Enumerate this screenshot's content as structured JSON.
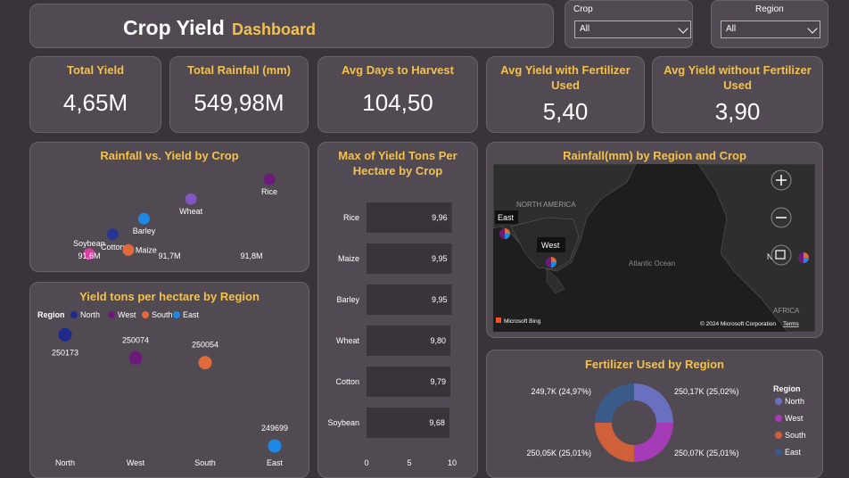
{
  "header": {
    "title_main": "Crop Yield",
    "title_sub": "Dashboard"
  },
  "slicers": [
    {
      "label": "Crop",
      "value": "All"
    },
    {
      "label": "Region",
      "value": "All"
    }
  ],
  "kpis": [
    {
      "label": "Total Yield",
      "value": "4,65M"
    },
    {
      "label": "Total Rainfall (mm)",
      "value": "549,98M"
    },
    {
      "label": "Avg Days to Harvest",
      "value": "104,50"
    },
    {
      "label": "Avg Yield with Fertilizer Used",
      "value": "5,40"
    },
    {
      "label": "Avg Yield without Fertilizer Used",
      "value": "3,90"
    }
  ],
  "scatter_crop": {
    "title": "Rainfall vs. Yield by Crop",
    "x_ticks": [
      "91,6M",
      "91,7M",
      "91,8M"
    ]
  },
  "region_scatter": {
    "title": "Yield tons per hectare by Region",
    "legend_title": "Region"
  },
  "bar_crop": {
    "title": "Max of Yield Tons Per Hectare by Crop"
  },
  "map": {
    "title": "Rainfall(mm) by Region and Crop",
    "labels": {
      "east": "East",
      "west": "West",
      "na": "NORTH AMERICA",
      "ocean": "Atlantic Ocean",
      "north_trunc": "N",
      "africa": "AFRICA"
    },
    "bing": "Microsoft Bing",
    "copyright": "© 2024 Microsoft Corporation",
    "terms": "Terms"
  },
  "donut": {
    "title": "Fertilizer Used by Region",
    "legend_title": "Region"
  },
  "colors": {
    "north": "#1f2a8c",
    "west": "#6a1b7a",
    "south": "#e06a3a",
    "east": "#1e88e5",
    "rice": "#6a1b7a",
    "wheat": "#7e57c2",
    "barley": "#1e88e5",
    "cotton": "#283593",
    "maize": "#e06a3a",
    "soybean": "#d63fa0",
    "donut_north": "#6a6fc0",
    "donut_west": "#a63bb8",
    "donut_south": "#d0603a",
    "donut_east": "#3a5a8a",
    "bar": "#3a3339"
  },
  "chart_data": [
    {
      "type": "scatter",
      "title": "Rainfall vs. Yield by Crop",
      "x_ticks": [
        "91,6M",
        "91,7M",
        "91,8M"
      ],
      "series": [
        {
          "name": "Rice",
          "x": 91.81,
          "y": 4.65
        },
        {
          "name": "Wheat",
          "x": 91.71,
          "y": 4.6
        },
        {
          "name": "Barley",
          "x": 91.65,
          "y": 4.55
        },
        {
          "name": "Cotton",
          "x": 91.61,
          "y": 4.51
        },
        {
          "name": "Maize",
          "x": 91.63,
          "y": 4.47
        },
        {
          "name": "Soybean",
          "x": 91.58,
          "y": 4.46
        }
      ]
    },
    {
      "type": "scatter",
      "title": "Yield tons per hectare by Region",
      "categories": [
        "North",
        "West",
        "South",
        "East"
      ],
      "legend": [
        "North",
        "West",
        "South",
        "East"
      ],
      "series": [
        {
          "name": "North",
          "value": 250173,
          "label": "250173"
        },
        {
          "name": "West",
          "value": 250074,
          "label": "250074"
        },
        {
          "name": "South",
          "value": 250054,
          "label": "250054"
        },
        {
          "name": "East",
          "value": 249699,
          "label": "249699"
        }
      ],
      "ylim": [
        249650,
        250220
      ]
    },
    {
      "type": "bar",
      "title": "Max of Yield Tons Per Hectare by Crop",
      "categories": [
        "Rice",
        "Maize",
        "Barley",
        "Wheat",
        "Cotton",
        "Soybean"
      ],
      "values": [
        9.96,
        9.95,
        9.95,
        9.8,
        9.79,
        9.68
      ],
      "value_labels": [
        "9,96",
        "9,95",
        "9,95",
        "9,80",
        "9,79",
        "9,68"
      ],
      "x_ticks": [
        "0",
        "5",
        "10"
      ],
      "xlim": [
        0,
        10
      ]
    },
    {
      "type": "pie",
      "title": "Fertilizer Used by Region",
      "categories": [
        "North",
        "West",
        "South",
        "East"
      ],
      "values": [
        250.17,
        250.07,
        250.05,
        249.7
      ],
      "value_labels": [
        "250,17K (25,02%)",
        "250,07K (25,01%)",
        "250,05K (25,01%)",
        "249,7K (24,97%)"
      ]
    }
  ]
}
